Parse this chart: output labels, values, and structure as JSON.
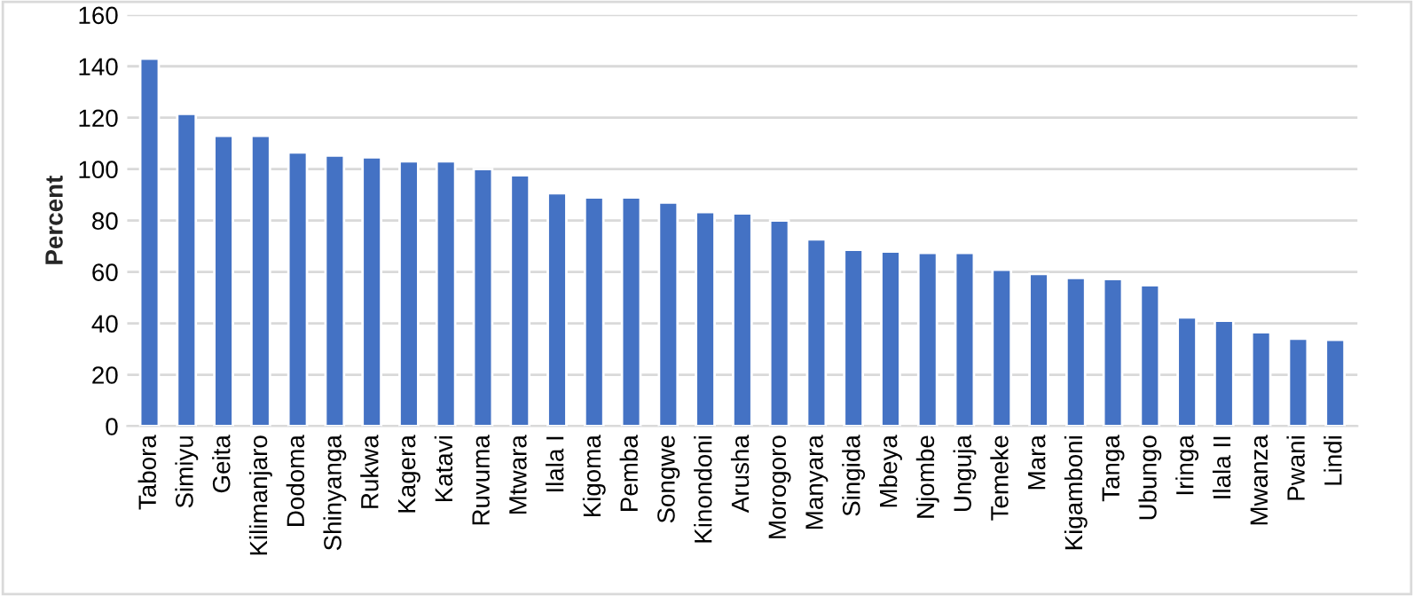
{
  "chart_data": {
    "type": "bar",
    "ylabel": "Percent",
    "categories": [
      "Tabora",
      "Simiyu",
      "Geita",
      "Kilimanjaro",
      "Dodoma",
      "Shinyanga",
      "Rukwa",
      "Kagera",
      "Katavi",
      "Ruvuma",
      "Mtwara",
      "Ilala I",
      "Kigoma",
      "Pemba",
      "Songwe",
      "Kinondoni",
      "Arusha",
      "Morogoro",
      "Manyara",
      "Singida",
      "Mbeya",
      "Njombe",
      "Unguja",
      "Temeke",
      "Mara",
      "Kigamboni",
      "Tanga",
      "Ubungo",
      "Iringa",
      "Ilala II",
      "Mwanza",
      "Pwani",
      "Lindi"
    ],
    "values": [
      143,
      121.5,
      113,
      113,
      106.5,
      105.3,
      104.6,
      103,
      103,
      100,
      97.6,
      90.6,
      89,
      89,
      87,
      83.3,
      82.8,
      80,
      72.7,
      68.6,
      67.9,
      67.4,
      67.4,
      60.9,
      59.2,
      57.7,
      57.2,
      54.8,
      42.3,
      41,
      36.5,
      34,
      33.6
    ],
    "color": "#4472c4",
    "ylim": [
      0,
      160
    ],
    "yticks": [
      0,
      20,
      40,
      60,
      80,
      100,
      120,
      140,
      160
    ],
    "grid": "y"
  }
}
